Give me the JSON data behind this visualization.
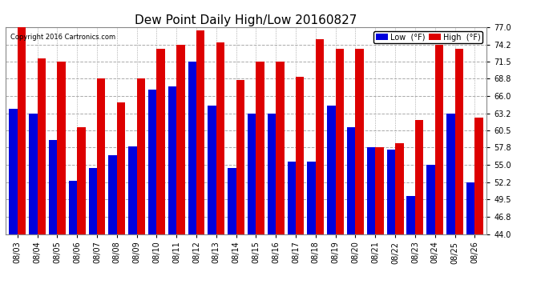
{
  "title": "Dew Point Daily High/Low 20160827",
  "copyright": "Copyright 2016 Cartronics.com",
  "dates": [
    "08/03",
    "08/04",
    "08/05",
    "08/06",
    "08/07",
    "08/08",
    "08/09",
    "08/10",
    "08/11",
    "08/12",
    "08/13",
    "08/14",
    "08/15",
    "08/16",
    "08/17",
    "08/18",
    "08/19",
    "08/20",
    "08/21",
    "08/22",
    "08/23",
    "08/24",
    "08/25",
    "08/26"
  ],
  "low_values": [
    64.0,
    63.2,
    59.0,
    52.5,
    54.5,
    56.5,
    58.0,
    67.0,
    67.5,
    71.5,
    64.5,
    54.5,
    63.2,
    63.2,
    55.5,
    55.5,
    64.5,
    61.0,
    57.8,
    57.5,
    50.0,
    55.0,
    63.2,
    52.2
  ],
  "high_values": [
    77.0,
    72.0,
    71.5,
    61.0,
    68.8,
    65.0,
    68.8,
    73.5,
    74.2,
    76.5,
    74.5,
    68.5,
    71.5,
    71.5,
    69.0,
    75.0,
    73.5,
    73.5,
    57.8,
    58.5,
    62.2,
    74.2,
    73.5,
    62.5
  ],
  "ylim": [
    44.0,
    77.0
  ],
  "yticks": [
    44.0,
    46.8,
    49.5,
    52.2,
    55.0,
    57.8,
    60.5,
    63.2,
    66.0,
    68.8,
    71.5,
    74.2,
    77.0
  ],
  "bar_width": 0.42,
  "low_color": "#0000dd",
  "high_color": "#dd0000",
  "bg_color": "#ffffff",
  "grid_color": "#aaaaaa",
  "title_fontsize": 11,
  "tick_fontsize": 7,
  "legend_low_label": "Low  (°F)",
  "legend_high_label": "High  (°F)"
}
